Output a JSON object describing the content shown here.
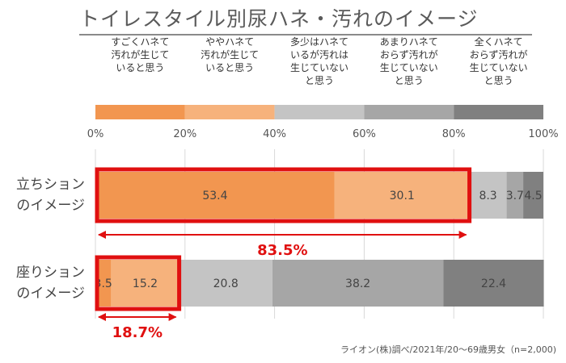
{
  "title": "トイレスタイル別尿ハネ・汚れのイメージ",
  "source": "ライオン(株)調べ/2021年/20～69歳男女（n=2,000)",
  "chart_data": {
    "type": "bar",
    "orientation": "horizontal",
    "stacked": true,
    "percent": true,
    "xlim": [
      0,
      100
    ],
    "x_ticks": [
      "0%",
      "20%",
      "40%",
      "60%",
      "80%",
      "100%"
    ],
    "categories": [
      "立ちション\nのイメージ",
      "座りション\nのイメージ"
    ],
    "series": [
      {
        "name": "すごくハネて\n汚れが生じて\nいると思う",
        "color": "#f29650",
        "values": [
          53.4,
          3.5
        ]
      },
      {
        "name": "ややハネて\n汚れが生じて\nいると思う",
        "color": "#f6b27c",
        "values": [
          30.1,
          15.2
        ]
      },
      {
        "name": "多少はハネて\nいるが汚れは\n生じていない\nと思う",
        "color": "#c4c4c4",
        "values": [
          8.3,
          20.8
        ]
      },
      {
        "name": "あまりハネて\nおらず汚れが\n生じていない\nと思う",
        "color": "#a6a6a6",
        "values": [
          3.7,
          38.2
        ]
      },
      {
        "name": "全くハネて\nおらず汚れが\n生じていない\nと思う",
        "color": "#808080",
        "values": [
          4.5,
          22.4
        ]
      }
    ],
    "data_labels": [
      [
        "53.4",
        "30.1",
        "8.3",
        "3.7",
        "4.5"
      ],
      [
        "3.5",
        "15.2",
        "20.8",
        "38.2",
        "22.4"
      ]
    ],
    "annotations": [
      {
        "text": "83.5%",
        "category": 0,
        "from": 0,
        "to": 83.5
      },
      {
        "text": "18.7%",
        "category": 1,
        "from": 0,
        "to": 18.7
      }
    ],
    "highlight_color": "#e01010",
    "grid": true
  }
}
